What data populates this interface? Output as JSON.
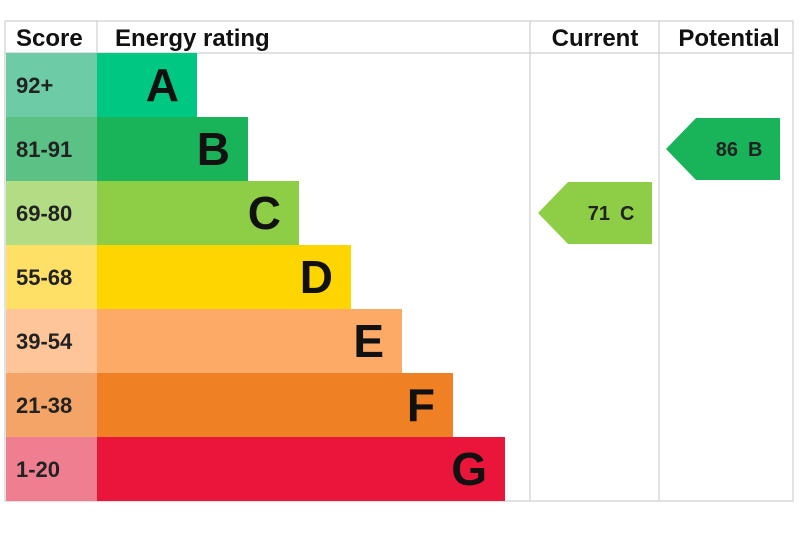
{
  "header": {
    "score": "Score",
    "energy_rating": "Energy rating",
    "current": "Current",
    "potential": "Potential"
  },
  "bands": [
    {
      "score": "92+",
      "letter": "A",
      "color": "#00c781",
      "score_bg": "#6dcca6"
    },
    {
      "score": "81-91",
      "letter": "B",
      "color": "#19b459",
      "score_bg": "#5bc185"
    },
    {
      "score": "69-80",
      "letter": "C",
      "color": "#8dce46",
      "score_bg": "#b2dd85"
    },
    {
      "score": "55-68",
      "letter": "D",
      "color": "#ffd500",
      "score_bg": "#ffe066"
    },
    {
      "score": "39-54",
      "letter": "E",
      "color": "#fcaa65",
      "score_bg": "#fdc598"
    },
    {
      "score": "21-38",
      "letter": "F",
      "color": "#ef8023",
      "score_bg": "#f4a467"
    },
    {
      "score": "1-20",
      "letter": "G",
      "color": "#e9153b",
      "score_bg": "#f07e91"
    }
  ],
  "current": {
    "value": 71,
    "letter": "C",
    "band": "C",
    "color": "#8dce46"
  },
  "potential": {
    "value": 86,
    "letter": "B",
    "band": "B",
    "color": "#19b459"
  },
  "chart_data": {
    "type": "table",
    "columns": [
      "Score",
      "Energy rating",
      "Current",
      "Potential"
    ],
    "rows": [
      {
        "score": "92+",
        "rating": "A"
      },
      {
        "score": "81-91",
        "rating": "B"
      },
      {
        "score": "69-80",
        "rating": "C"
      },
      {
        "score": "55-68",
        "rating": "D"
      },
      {
        "score": "39-54",
        "rating": "E"
      },
      {
        "score": "21-38",
        "rating": "F"
      },
      {
        "score": "1-20",
        "rating": "G"
      }
    ],
    "current": {
      "value": 71,
      "rating": "C"
    },
    "potential": {
      "value": 86,
      "rating": "B"
    }
  }
}
